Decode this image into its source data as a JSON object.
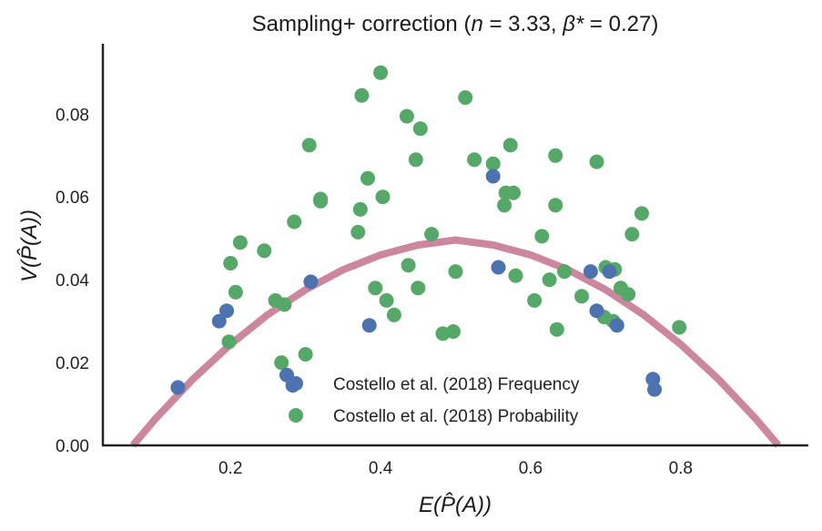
{
  "chart_data": {
    "type": "scatter",
    "title": "Sampling+ correction (n = 3.33, β* = 0.27)",
    "title_parts": {
      "prefix": "Sampling+ correction (",
      "n_sym": "n",
      "n_val": " = 3.33, ",
      "beta_sym": "β*",
      "beta_val": " = 0.27)"
    },
    "xlabel": "E(P̂(A))",
    "ylabel": "V(P̂(A))",
    "xlim": [
      0.03,
      0.97
    ],
    "ylim": [
      0.0,
      0.097
    ],
    "xticks": [
      "0.2",
      "0.4",
      "0.6",
      "0.8"
    ],
    "yticks": [
      "0.00",
      "0.02",
      "0.04",
      "0.06",
      "0.08"
    ],
    "grid": false,
    "legend_position": "lower-center",
    "series": [
      {
        "name": "Costello et al. (2018) Frequency",
        "color": "#4c72b0",
        "points": [
          [
            0.13,
            0.014
          ],
          [
            0.185,
            0.03
          ],
          [
            0.195,
            0.0325
          ],
          [
            0.275,
            0.017
          ],
          [
            0.283,
            0.0145
          ],
          [
            0.307,
            0.0395
          ],
          [
            0.385,
            0.029
          ],
          [
            0.55,
            0.065
          ],
          [
            0.557,
            0.043
          ],
          [
            0.68,
            0.042
          ],
          [
            0.688,
            0.0325
          ],
          [
            0.715,
            0.029
          ],
          [
            0.763,
            0.016
          ],
          [
            0.765,
            0.0135
          ],
          [
            0.705,
            0.042
          ]
        ]
      },
      {
        "name": "Costello et al. (2018) Probability",
        "color": "#55a868",
        "points": [
          [
            0.198,
            0.025
          ],
          [
            0.2,
            0.044
          ],
          [
            0.207,
            0.037
          ],
          [
            0.213,
            0.049
          ],
          [
            0.245,
            0.047
          ],
          [
            0.26,
            0.035
          ],
          [
            0.268,
            0.02
          ],
          [
            0.272,
            0.034
          ],
          [
            0.285,
            0.054
          ],
          [
            0.3,
            0.022
          ],
          [
            0.305,
            0.0725
          ],
          [
            0.32,
            0.0595
          ],
          [
            0.32,
            0.059
          ],
          [
            0.37,
            0.0515
          ],
          [
            0.373,
            0.057
          ],
          [
            0.375,
            0.0845
          ],
          [
            0.383,
            0.0645
          ],
          [
            0.393,
            0.038
          ],
          [
            0.4,
            0.09
          ],
          [
            0.403,
            0.06
          ],
          [
            0.408,
            0.035
          ],
          [
            0.418,
            0.0315
          ],
          [
            0.435,
            0.0795
          ],
          [
            0.437,
            0.0435
          ],
          [
            0.447,
            0.069
          ],
          [
            0.45,
            0.038
          ],
          [
            0.453,
            0.0765
          ],
          [
            0.468,
            0.051
          ],
          [
            0.483,
            0.027
          ],
          [
            0.497,
            0.0275
          ],
          [
            0.5,
            0.042
          ],
          [
            0.513,
            0.084
          ],
          [
            0.525,
            0.069
          ],
          [
            0.55,
            0.068
          ],
          [
            0.565,
            0.058
          ],
          [
            0.567,
            0.061
          ],
          [
            0.573,
            0.0725
          ],
          [
            0.577,
            0.061
          ],
          [
            0.58,
            0.041
          ],
          [
            0.605,
            0.035
          ],
          [
            0.615,
            0.0505
          ],
          [
            0.625,
            0.04
          ],
          [
            0.633,
            0.07
          ],
          [
            0.633,
            0.058
          ],
          [
            0.635,
            0.028
          ],
          [
            0.645,
            0.042
          ],
          [
            0.668,
            0.036
          ],
          [
            0.688,
            0.0685
          ],
          [
            0.698,
            0.031
          ],
          [
            0.71,
            0.03
          ],
          [
            0.72,
            0.038
          ],
          [
            0.73,
            0.0365
          ],
          [
            0.735,
            0.051
          ],
          [
            0.748,
            0.056
          ],
          [
            0.798,
            0.0285
          ],
          [
            0.7,
            0.043
          ],
          [
            0.712,
            0.0425
          ]
        ]
      }
    ],
    "curve": {
      "name": "Sampling+ correction fit",
      "color": "#cc869e",
      "x": [
        0.07,
        0.1,
        0.15,
        0.2,
        0.25,
        0.3,
        0.35,
        0.4,
        0.45,
        0.5,
        0.55,
        0.6,
        0.65,
        0.7,
        0.75,
        0.8,
        0.85,
        0.9,
        0.93
      ],
      "y": [
        0.0,
        0.0064,
        0.016,
        0.0244,
        0.0316,
        0.0376,
        0.0424,
        0.046,
        0.0484,
        0.0496,
        0.0484,
        0.046,
        0.0424,
        0.0376,
        0.0316,
        0.0244,
        0.016,
        0.0064,
        0.0
      ]
    }
  }
}
